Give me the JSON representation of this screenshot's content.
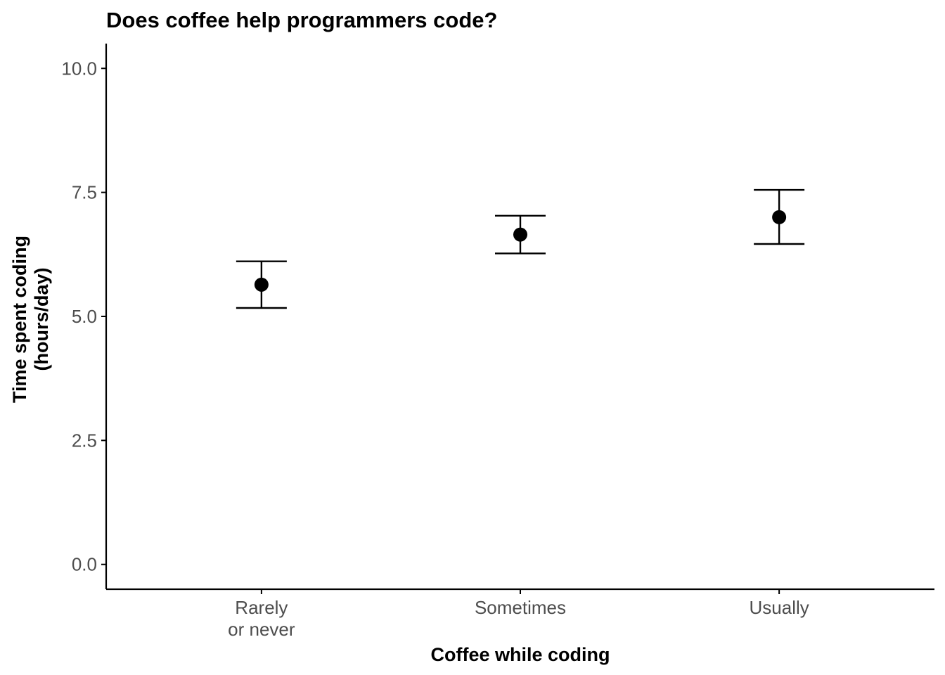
{
  "chart_data": {
    "type": "scatter",
    "title": "Does coffee help programmers code?",
    "xlabel": "Coffee while coding",
    "ylabel": [
      "Time spent coding",
      "(hours/day)"
    ],
    "categories": [
      [
        "Rarely",
        "or never"
      ],
      [
        "Sometimes"
      ],
      [
        "Usually"
      ]
    ],
    "series": [
      {
        "values": [
          5.64,
          6.65,
          7.0
        ],
        "error_low": [
          5.17,
          6.27,
          6.46
        ],
        "error_high": [
          6.11,
          7.03,
          7.55
        ]
      }
    ],
    "yticks": [
      0.0,
      2.5,
      5.0,
      7.5,
      10.0
    ],
    "ytick_labels": [
      "0.0",
      "2.5",
      "5.0",
      "7.5",
      "10.0"
    ],
    "ylim": [
      -0.5,
      10.5
    ],
    "grid": false,
    "legend": "none",
    "colors": {
      "point": "#000000",
      "axis": "#000000",
      "tick_text": "#4d4d4d"
    }
  }
}
